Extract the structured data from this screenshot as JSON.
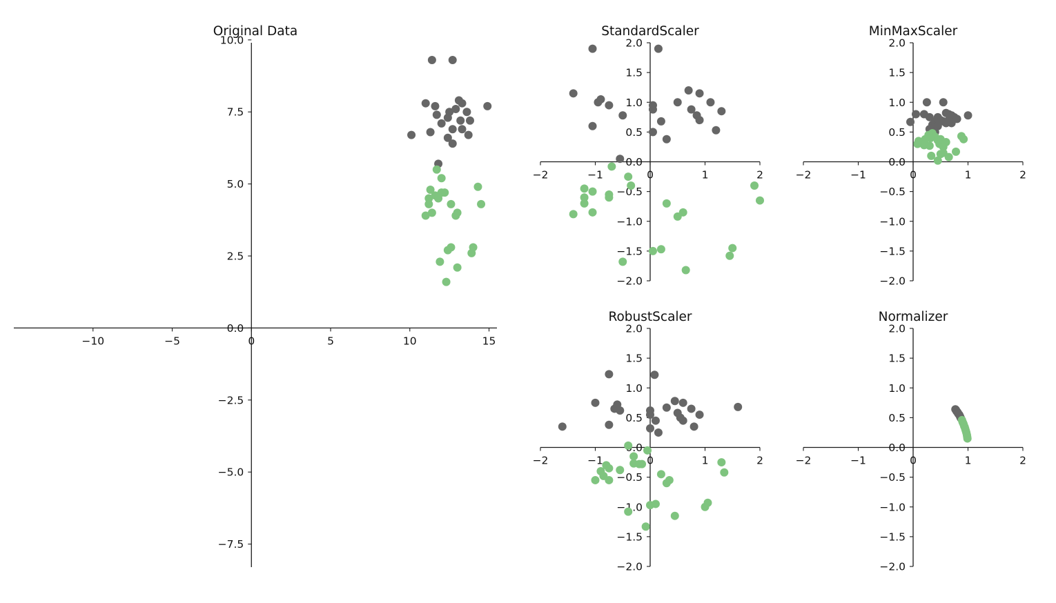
{
  "colors": {
    "class0": "#666666",
    "class1": "#7fc47f"
  },
  "chart_data": [
    {
      "type": "scatter",
      "title": "Original Data",
      "xlim": [
        -15,
        15.5
      ],
      "ylim": [
        -8.3,
        9.9
      ],
      "xticks": [
        -10,
        -5,
        0,
        5,
        10,
        15
      ],
      "xtick_labels": [
        "−10",
        "−5",
        "0",
        "5",
        "10",
        "15"
      ],
      "yticks": [
        10,
        7.5,
        5,
        2.5,
        0,
        -2.5,
        -5,
        -7.5
      ],
      "ytick_labels": [
        "10.0",
        "7.5",
        "5.0",
        "2.5",
        "0.0",
        "−2.5",
        "−5.0",
        "−7.5"
      ],
      "grid": false,
      "series": [
        {
          "color_key": "class0",
          "points": [
            [
              11.4,
              9.3
            ],
            [
              12.7,
              9.3
            ],
            [
              11,
              7.8
            ],
            [
              11.6,
              7.7
            ],
            [
              11.7,
              7.4
            ],
            [
              12.5,
              7.5
            ],
            [
              13.1,
              7.9
            ],
            [
              13.3,
              7.8
            ],
            [
              12.9,
              7.6
            ],
            [
              13.6,
              7.5
            ],
            [
              14.9,
              7.7
            ],
            [
              12.4,
              7.3
            ],
            [
              13.2,
              7.2
            ],
            [
              13.8,
              7.2
            ],
            [
              12,
              7.1
            ],
            [
              13.3,
              6.9
            ],
            [
              12.7,
              6.9
            ],
            [
              10.1,
              6.7
            ],
            [
              11.3,
              6.8
            ],
            [
              12.4,
              6.6
            ],
            [
              13.7,
              6.7
            ],
            [
              12.7,
              6.4
            ],
            [
              11.8,
              5.7
            ]
          ]
        },
        {
          "color_key": "class1",
          "points": [
            [
              11.7,
              5.5
            ],
            [
              12,
              5.2
            ],
            [
              11.3,
              4.8
            ],
            [
              11.6,
              4.6
            ],
            [
              11.2,
              4.5
            ],
            [
              12.2,
              4.7
            ],
            [
              12,
              4.7
            ],
            [
              11.8,
              4.5
            ],
            [
              14.3,
              4.9
            ],
            [
              14.5,
              4.3
            ],
            [
              12.6,
              4.3
            ],
            [
              11.2,
              4.3
            ],
            [
              13,
              4
            ],
            [
              12.9,
              3.9
            ],
            [
              11,
              3.9
            ],
            [
              11.4,
              4
            ],
            [
              14,
              2.8
            ],
            [
              12.6,
              2.8
            ],
            [
              12.4,
              2.7
            ],
            [
              13.9,
              2.6
            ],
            [
              11.9,
              2.3
            ],
            [
              13,
              2.1
            ],
            [
              12.3,
              1.6
            ]
          ]
        }
      ]
    },
    {
      "type": "scatter",
      "title": "StandardScaler",
      "xlim": [
        -2,
        2
      ],
      "ylim": [
        -2,
        2
      ],
      "xticks": [
        -2,
        -1,
        0,
        1,
        2
      ],
      "xtick_labels": [
        "−2",
        "−1",
        "0",
        "1",
        "2"
      ],
      "yticks": [
        2,
        1.5,
        1,
        0.5,
        0,
        -0.5,
        -1,
        -1.5,
        -2
      ],
      "ytick_labels": [
        "2.0",
        "1.5",
        "1.0",
        "0.5",
        "0.0",
        "−0.5",
        "−1.0",
        "−1.5",
        "−2.0"
      ],
      "grid": false,
      "series": [
        {
          "color_key": "class0",
          "points": [
            [
              -1.05,
              1.9
            ],
            [
              0.15,
              1.9
            ],
            [
              -1.4,
              1.15
            ],
            [
              -0.9,
              1.05
            ],
            [
              -0.95,
              1
            ],
            [
              -0.75,
              0.95
            ],
            [
              0.05,
              0.95
            ],
            [
              0.05,
              0.88
            ],
            [
              0.5,
              1
            ],
            [
              0.7,
              1.2
            ],
            [
              0.9,
              1.15
            ],
            [
              1.1,
              1
            ],
            [
              1.3,
              0.85
            ],
            [
              0.75,
              0.88
            ],
            [
              0.85,
              0.78
            ],
            [
              0.9,
              0.7
            ],
            [
              -0.5,
              0.78
            ],
            [
              0.2,
              0.68
            ],
            [
              -1.05,
              0.6
            ],
            [
              0.05,
              0.5
            ],
            [
              1.2,
              0.53
            ],
            [
              0.3,
              0.38
            ],
            [
              -0.55,
              0.05
            ]
          ]
        },
        {
          "color_key": "class1",
          "points": [
            [
              -0.7,
              -0.08
            ],
            [
              -0.4,
              -0.25
            ],
            [
              -0.35,
              -0.4
            ],
            [
              -1.2,
              -0.45
            ],
            [
              -1.05,
              -0.5
            ],
            [
              -0.75,
              -0.55
            ],
            [
              -0.75,
              -0.6
            ],
            [
              -1.2,
              -0.6
            ],
            [
              -1.2,
              -0.7
            ],
            [
              1.9,
              -0.4
            ],
            [
              2,
              -0.65
            ],
            [
              0.3,
              -0.7
            ],
            [
              0.6,
              -0.85
            ],
            [
              0.5,
              -0.92
            ],
            [
              -1.05,
              -0.85
            ],
            [
              -1.4,
              -0.88
            ],
            [
              0.05,
              -1.5
            ],
            [
              0.2,
              -1.47
            ],
            [
              1.5,
              -1.45
            ],
            [
              1.45,
              -1.58
            ],
            [
              -0.5,
              -1.68
            ],
            [
              0.65,
              -1.82
            ]
          ]
        }
      ]
    },
    {
      "type": "scatter",
      "title": "MinMaxScaler",
      "xlim": [
        -2,
        2
      ],
      "ylim": [
        -2,
        2
      ],
      "xticks": [
        -2,
        -1,
        0,
        1,
        2
      ],
      "xtick_labels": [
        "−2",
        "−1",
        "0",
        "1",
        "2"
      ],
      "yticks": [
        2,
        1.5,
        1,
        0.5,
        0,
        -0.5,
        -1,
        -1.5,
        -2
      ],
      "ytick_labels": [
        "2.0",
        "1.5",
        "1.0",
        "0.5",
        "0.0",
        "−0.5",
        "−1.0",
        "−1.5",
        "−2.0"
      ],
      "grid": false,
      "series": [
        {
          "color_key": "class0",
          "points": [
            [
              0.25,
              1
            ],
            [
              0.55,
              1
            ],
            [
              0.05,
              0.8
            ],
            [
              0.2,
              0.8
            ],
            [
              0.3,
              0.75
            ],
            [
              0.45,
              0.75
            ],
            [
              0.6,
              0.82
            ],
            [
              0.65,
              0.8
            ],
            [
              0.7,
              0.78
            ],
            [
              0.75,
              0.75
            ],
            [
              0.8,
              0.72
            ],
            [
              1,
              0.78
            ],
            [
              0.5,
              0.7
            ],
            [
              0.55,
              0.68
            ],
            [
              0.6,
              0.65
            ],
            [
              0.7,
              0.65
            ],
            [
              0.65,
              0.7
            ],
            [
              0.4,
              0.68
            ],
            [
              0.35,
              0.62
            ],
            [
              0.45,
              0.6
            ],
            [
              -0.05,
              0.67
            ],
            [
              0.3,
              0.55
            ],
            [
              0.4,
              0.5
            ]
          ]
        },
        {
          "color_key": "class1",
          "points": [
            [
              0.35,
              0.48
            ],
            [
              0.28,
              0.45
            ],
            [
              0.4,
              0.42
            ],
            [
              0.32,
              0.4
            ],
            [
              0.22,
              0.38
            ],
            [
              0.5,
              0.38
            ],
            [
              0.45,
              0.36
            ],
            [
              0.1,
              0.35
            ],
            [
              0.6,
              0.33
            ],
            [
              0.88,
              0.43
            ],
            [
              0.92,
              0.38
            ],
            [
              0.2,
              0.28
            ],
            [
              0.48,
              0.3
            ],
            [
              0.55,
              0.25
            ],
            [
              0.3,
              0.27
            ],
            [
              0.08,
              0.3
            ],
            [
              0.55,
              0.15
            ],
            [
              0.5,
              0.13
            ],
            [
              0.78,
              0.17
            ],
            [
              0.33,
              0.1
            ],
            [
              0.65,
              0.08
            ],
            [
              0.45,
              0.02
            ]
          ]
        }
      ]
    },
    {
      "type": "scatter",
      "title": "RobustScaler",
      "xlim": [
        -2,
        2
      ],
      "ylim": [
        -2,
        2
      ],
      "xticks": [
        -2,
        -1,
        0,
        1,
        2
      ],
      "xtick_labels": [
        "−2",
        "−1",
        "0",
        "1",
        "2"
      ],
      "yticks": [
        2,
        1.5,
        1,
        0.5,
        0,
        -0.5,
        -1,
        -1.5,
        -2
      ],
      "ytick_labels": [
        "2.0",
        "1.5",
        "1.0",
        "0.5",
        "0.0",
        "−0.5",
        "−1.0",
        "−1.5",
        "−2.0"
      ],
      "grid": false,
      "series": [
        {
          "color_key": "class0",
          "points": [
            [
              -0.75,
              1.23
            ],
            [
              0.08,
              1.22
            ],
            [
              -1,
              0.75
            ],
            [
              -0.6,
              0.72
            ],
            [
              -0.65,
              0.65
            ],
            [
              -0.55,
              0.62
            ],
            [
              0,
              0.62
            ],
            [
              0,
              0.55
            ],
            [
              0.3,
              0.67
            ],
            [
              0.45,
              0.78
            ],
            [
              0.6,
              0.75
            ],
            [
              0.75,
              0.65
            ],
            [
              0.9,
              0.55
            ],
            [
              0.5,
              0.58
            ],
            [
              0.55,
              0.5
            ],
            [
              0.6,
              0.45
            ],
            [
              1.6,
              0.68
            ],
            [
              0.1,
              0.45
            ],
            [
              -1.6,
              0.35
            ],
            [
              -0.75,
              0.38
            ],
            [
              0.8,
              0.35
            ],
            [
              0,
              0.32
            ],
            [
              0.15,
              0.25
            ]
          ]
        },
        {
          "color_key": "class1",
          "points": [
            [
              -0.4,
              0.03
            ],
            [
              -0.05,
              -0.05
            ],
            [
              -0.3,
              -0.15
            ],
            [
              -0.3,
              -0.27
            ],
            [
              -0.2,
              -0.28
            ],
            [
              -0.15,
              -0.28
            ],
            [
              -0.8,
              -0.3
            ],
            [
              -0.75,
              -0.35
            ],
            [
              -0.9,
              -0.4
            ],
            [
              -0.55,
              -0.38
            ],
            [
              -0.85,
              -0.48
            ],
            [
              1.3,
              -0.25
            ],
            [
              1.35,
              -0.42
            ],
            [
              0.2,
              -0.45
            ],
            [
              0.35,
              -0.55
            ],
            [
              0.3,
              -0.6
            ],
            [
              -1,
              -0.55
            ],
            [
              -0.75,
              -0.55
            ],
            [
              0,
              -0.97
            ],
            [
              0.1,
              -0.95
            ],
            [
              1.05,
              -0.93
            ],
            [
              1,
              -1
            ],
            [
              -0.4,
              -1.08
            ],
            [
              0.45,
              -1.15
            ],
            [
              -0.08,
              -1.33
            ]
          ]
        }
      ]
    },
    {
      "type": "scatter",
      "title": "Normalizer",
      "xlim": [
        -2,
        2
      ],
      "ylim": [
        -2,
        2
      ],
      "xticks": [
        -2,
        -1,
        0,
        1,
        2
      ],
      "xtick_labels": [
        "−2",
        "−1",
        "0",
        "1",
        "2"
      ],
      "yticks": [
        2,
        1.5,
        1,
        0.5,
        0,
        -0.5,
        -1,
        -1.5,
        -2
      ],
      "ytick_labels": [
        "2.0",
        "1.5",
        "1.0",
        "0.5",
        "0.0",
        "−0.5",
        "−1.0",
        "−1.5",
        "−2.0"
      ],
      "grid": false,
      "series": [
        {
          "color_key": "class0",
          "points": [
            [
              0.77,
              0.64
            ],
            [
              0.78,
              0.63
            ],
            [
              0.79,
              0.61
            ],
            [
              0.8,
              0.6
            ],
            [
              0.81,
              0.59
            ],
            [
              0.82,
              0.57
            ],
            [
              0.83,
              0.56
            ],
            [
              0.84,
              0.55
            ],
            [
              0.85,
              0.53
            ],
            [
              0.86,
              0.51
            ],
            [
              0.87,
              0.49
            ]
          ]
        },
        {
          "color_key": "class1",
          "points": [
            [
              0.89,
              0.46
            ],
            [
              0.9,
              0.43
            ],
            [
              0.91,
              0.41
            ],
            [
              0.92,
              0.39
            ],
            [
              0.93,
              0.36
            ],
            [
              0.94,
              0.34
            ],
            [
              0.95,
              0.31
            ],
            [
              0.96,
              0.28
            ],
            [
              0.97,
              0.25
            ],
            [
              0.98,
              0.21
            ],
            [
              0.985,
              0.18
            ],
            [
              0.99,
              0.15
            ]
          ]
        }
      ]
    }
  ]
}
